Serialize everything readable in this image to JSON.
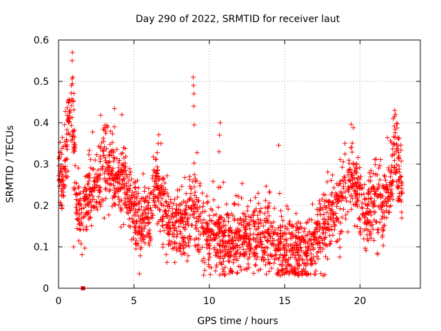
{
  "chart_data": {
    "type": "scatter",
    "title": "Day 290 of 2022, SRMTID for receiver laut",
    "xlabel": "GPS time / hours",
    "ylabel": "SRMTID / TECUs",
    "xlim": [
      0,
      24
    ],
    "ylim": [
      0,
      0.6
    ],
    "x_ticks": [
      0,
      5,
      10,
      15,
      20
    ],
    "x_tick_labels": [
      "0",
      "5",
      "10",
      "15",
      "20"
    ],
    "y_ticks": [
      0,
      0.1,
      0.2,
      0.3,
      0.4,
      0.5,
      0.6
    ],
    "y_tick_labels": [
      "0",
      "0.1",
      "0.2",
      "0.3",
      "0.4",
      "0.5",
      "0.6"
    ],
    "grid": true,
    "marker": "plus",
    "color": "#ff0000",
    "envelope": {
      "x": [
        0.0,
        0.3,
        0.5,
        0.7,
        0.9,
        1.2,
        1.5,
        2.0,
        2.5,
        3.0,
        3.5,
        4.0,
        4.5,
        5.0,
        5.5,
        6.0,
        6.5,
        7.0,
        7.5,
        8.0,
        8.5,
        9.0,
        9.5,
        10.0,
        10.5,
        11.0,
        12.0,
        13.0,
        14.0,
        15.0,
        15.5,
        16.0,
        16.5,
        17.0,
        17.5,
        18.0,
        18.5,
        19.0,
        19.5,
        20.0,
        20.5,
        21.0,
        21.5,
        22.0,
        22.3,
        22.6,
        22.8
      ],
      "y": [
        0.27,
        0.25,
        0.33,
        0.42,
        0.44,
        0.2,
        0.17,
        0.22,
        0.24,
        0.29,
        0.27,
        0.27,
        0.24,
        0.19,
        0.15,
        0.17,
        0.24,
        0.18,
        0.14,
        0.16,
        0.15,
        0.2,
        0.14,
        0.12,
        0.13,
        0.11,
        0.11,
        0.12,
        0.12,
        0.09,
        0.08,
        0.07,
        0.08,
        0.11,
        0.14,
        0.17,
        0.2,
        0.24,
        0.26,
        0.21,
        0.19,
        0.2,
        0.19,
        0.23,
        0.34,
        0.26,
        0.22
      ],
      "spread": 0.045
    },
    "n_points": 2400,
    "spikes": [
      {
        "x": 0.92,
        "y": 0.57
      },
      {
        "x": 0.9,
        "y": 0.55
      },
      {
        "x": 0.95,
        "y": 0.51
      },
      {
        "x": 0.85,
        "y": 0.49
      },
      {
        "x": 8.93,
        "y": 0.51
      },
      {
        "x": 8.95,
        "y": 0.49
      },
      {
        "x": 8.98,
        "y": 0.47
      },
      {
        "x": 8.97,
        "y": 0.44
      },
      {
        "x": 9.0,
        "y": 0.395
      },
      {
        "x": 10.72,
        "y": 0.4
      },
      {
        "x": 10.68,
        "y": 0.37
      },
      {
        "x": 10.65,
        "y": 0.33
      },
      {
        "x": 3.25,
        "y": 0.39
      },
      {
        "x": 3.1,
        "y": 0.38
      },
      {
        "x": 6.8,
        "y": 0.35
      },
      {
        "x": 22.3,
        "y": 0.43
      },
      {
        "x": 22.35,
        "y": 0.42
      },
      {
        "x": 22.2,
        "y": 0.41
      },
      {
        "x": 19.0,
        "y": 0.35
      },
      {
        "x": 19.4,
        "y": 0.34
      },
      {
        "x": 1.0,
        "y": 0.1
      }
    ],
    "outliers": [
      {
        "x": 1.62,
        "y": 0.0,
        "marker": "square"
      }
    ]
  }
}
